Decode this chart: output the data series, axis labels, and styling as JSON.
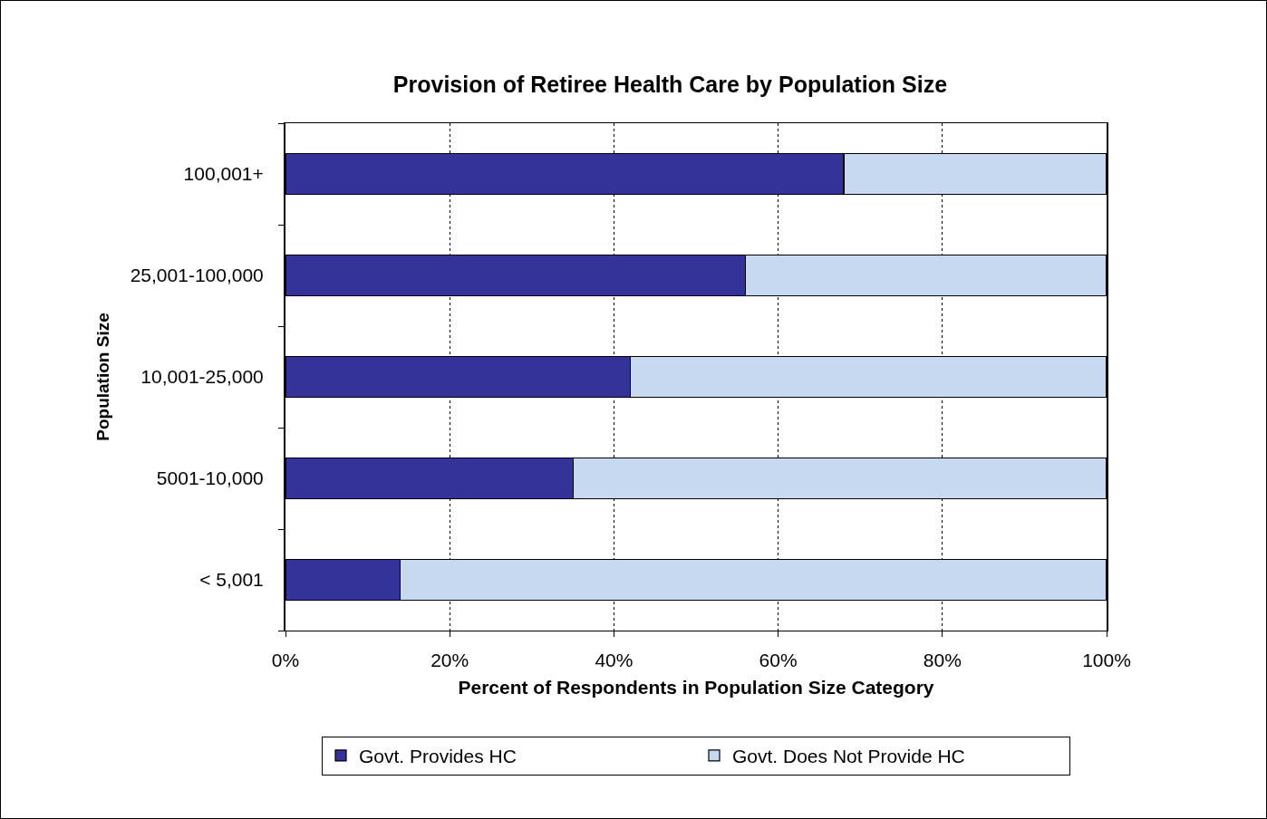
{
  "chart_data": {
    "type": "bar",
    "orientation": "horizontal",
    "stacked": true,
    "title": "Provision of Retiree Health Care by Population Size",
    "xlabel": "Percent of Respondents in Population Size Category",
    "ylabel": "Population Size",
    "categories": [
      "100,001+",
      "25,001-100,000",
      "10,001-25,000",
      "5001-10,000",
      "< 5,001"
    ],
    "series": [
      {
        "name": "Govt. Provides HC",
        "color": "#333399",
        "values": [
          68,
          56,
          42,
          35,
          14
        ]
      },
      {
        "name": "Govt. Does Not Provide HC",
        "color": "#c6d9f0",
        "values": [
          32,
          44,
          58,
          65,
          86
        ]
      }
    ],
    "xlim": [
      0,
      100
    ],
    "xticks": [
      {
        "value": 0,
        "label": "0%"
      },
      {
        "value": 20,
        "label": "20%"
      },
      {
        "value": 40,
        "label": "40%"
      },
      {
        "value": 60,
        "label": "60%"
      },
      {
        "value": 80,
        "label": "80%"
      },
      {
        "value": 100,
        "label": "100%"
      }
    ],
    "grid": "x",
    "legend": "bottom"
  }
}
